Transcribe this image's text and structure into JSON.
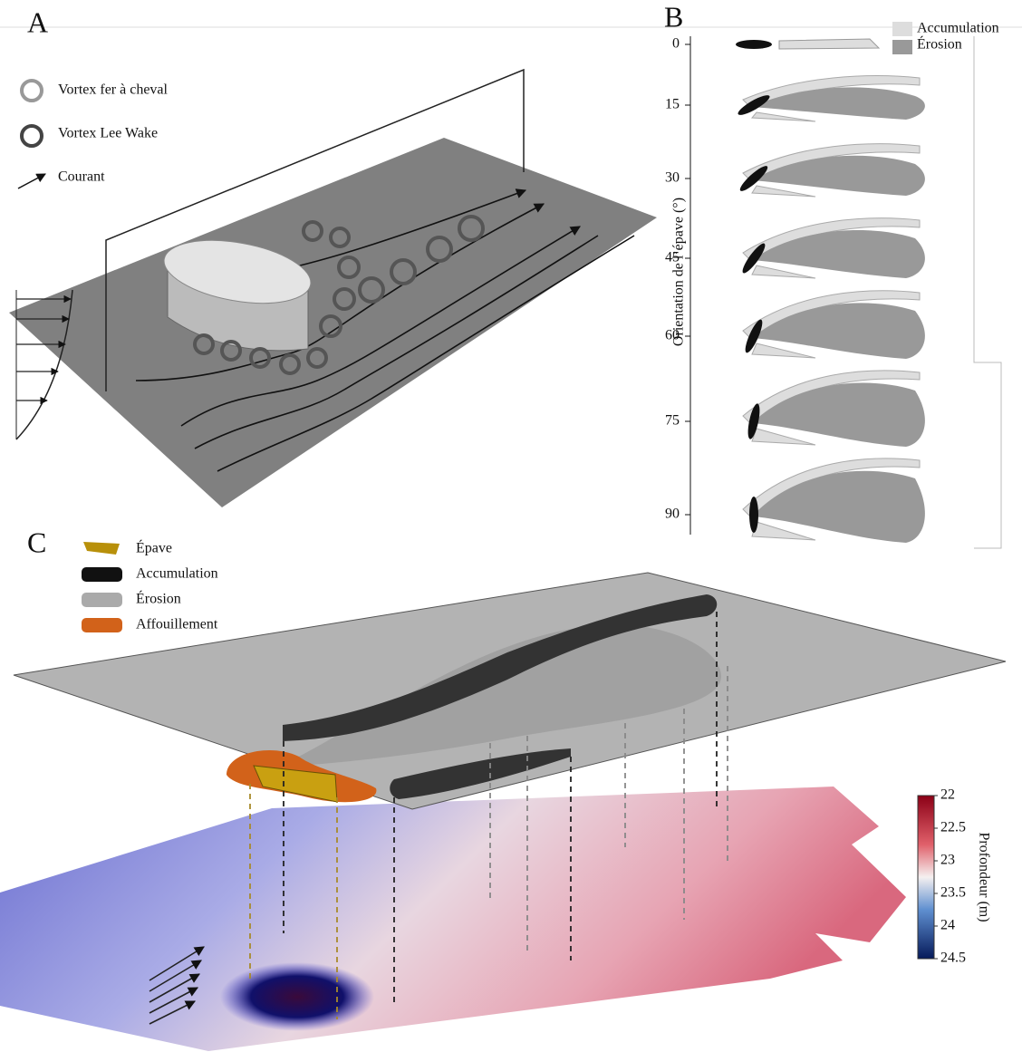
{
  "panels": {
    "a": {
      "label": "A",
      "legend": [
        "Vortex fer à cheval",
        "Vortex Lee Wake",
        "Courant"
      ]
    },
    "b": {
      "label": "B",
      "y_label": "Orientation de l’épave (°)",
      "ticks": [
        0,
        15,
        30,
        45,
        60,
        75,
        90
      ],
      "legend": [
        "Accumulation",
        "Érosion"
      ]
    },
    "c": {
      "label": "C",
      "legend": [
        "Épave",
        "Accumulation",
        "Érosion",
        "Affouillement"
      ],
      "colorbar": {
        "label": "Profondeur (m)",
        "ticks": [
          22,
          22.5,
          23,
          23.5,
          24,
          24.5
        ]
      }
    }
  }
}
